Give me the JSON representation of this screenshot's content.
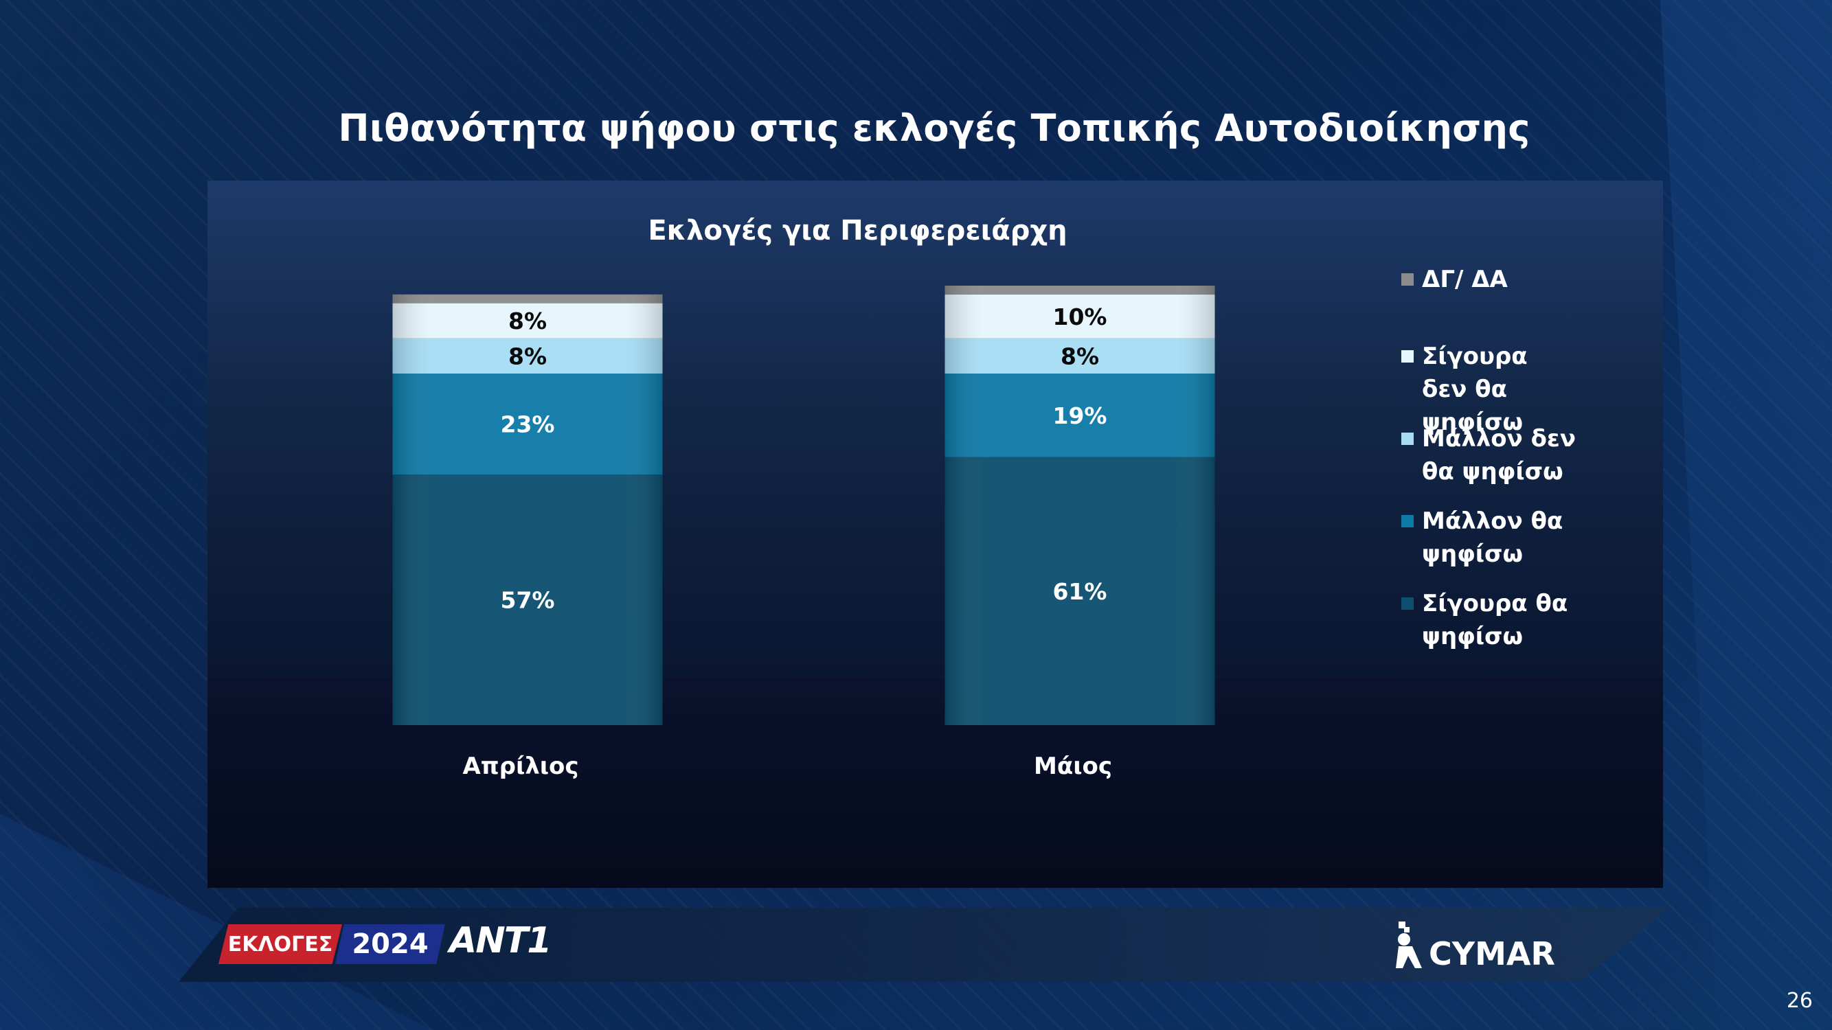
{
  "title": "Πιθανότητα ψήφου στις εκλογές Τοπικής Αυτοδιοίκησης",
  "chart_data": {
    "type": "bar",
    "stacked": true,
    "title": "Εκλογές για Περιφερειάρχη",
    "categories": [
      "Απρίλιος",
      "Μάιος"
    ],
    "unit": "%",
    "ylim": [
      0,
      100
    ],
    "grid": false,
    "legend_position": "right",
    "series": [
      {
        "name": "Σίγουρα θα ψηφίσω",
        "values": [
          57,
          61
        ],
        "color": "#0d4f6e",
        "labels": [
          "57%",
          "61%"
        ],
        "label_color": "#ffffff"
      },
      {
        "name": "Μάλλον θα ψηφίσω",
        "values": [
          23,
          19
        ],
        "color": "#0e7aa6",
        "labels": [
          "23%",
          "19%"
        ],
        "label_color": "#ffffff"
      },
      {
        "name": "Μάλλον δεν θα ψηφίσω",
        "values": [
          8,
          8
        ],
        "color": "#a6ddf5",
        "labels": [
          "8%",
          "8%"
        ],
        "label_color": "#000000"
      },
      {
        "name": "Σίγουρα δεν θα ψηφίσω",
        "values": [
          8,
          10
        ],
        "color": "#e6f6fd",
        "labels": [
          "8%",
          "10%"
        ],
        "label_color": "#000000"
      },
      {
        "name": "ΔΓ/ ΔΑ",
        "values": [
          2,
          2
        ],
        "color": "#8c8c8c",
        "labels": [
          "",
          ""
        ],
        "label_color": "#000000"
      }
    ],
    "legend_order": [
      "ΔΓ/ ΔΑ",
      "Σίγουρα δεν θα ψηφίσω",
      "Μάλλον δεν θα ψηφίσω",
      "Μάλλον θα ψηφίσω",
      "Σίγουρα θα ψηφίσω"
    ]
  },
  "footer": {
    "elections_label": "ΕΚΛΟΓΕΣ",
    "year": "2024",
    "channel": "ANT1",
    "pollster": "CYMAR"
  },
  "page_number": "26"
}
